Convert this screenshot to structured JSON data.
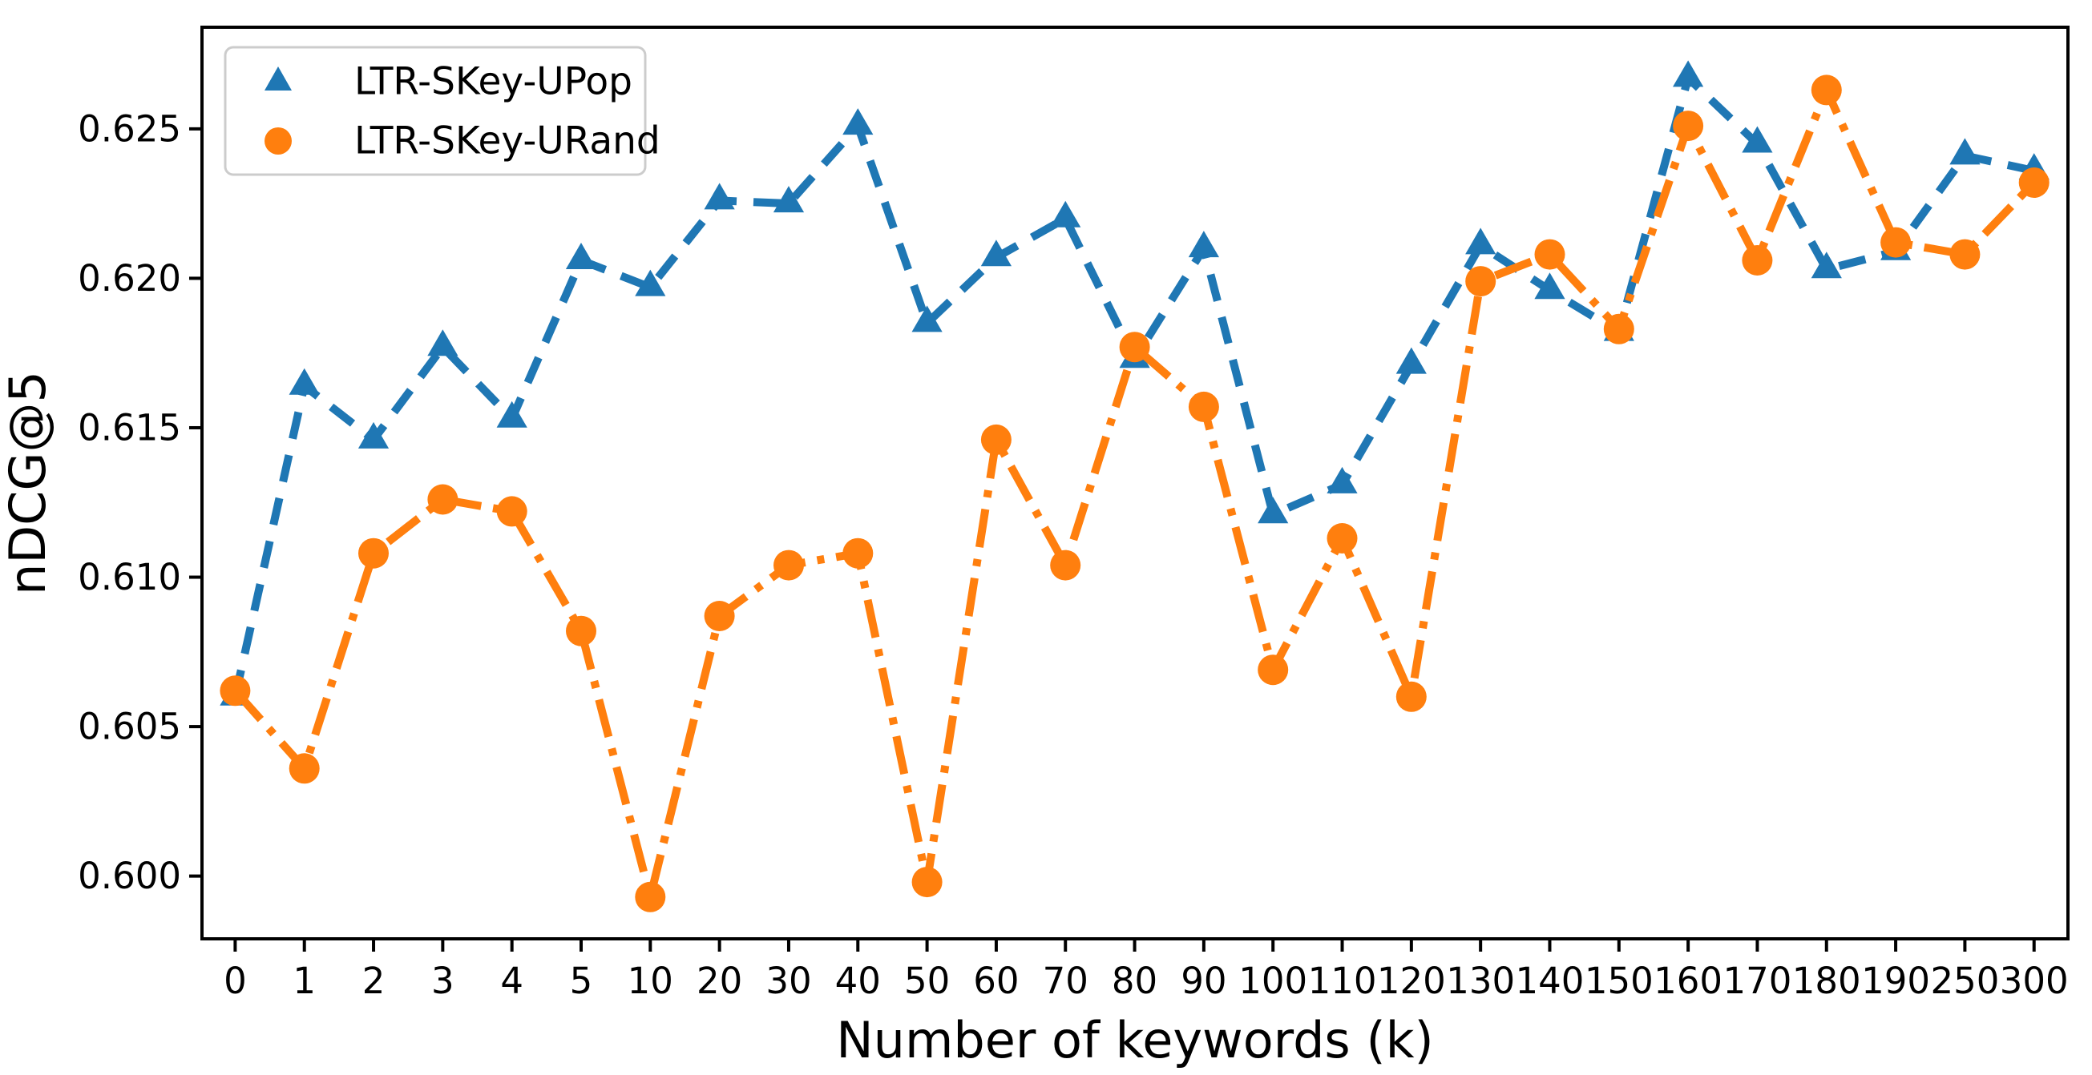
{
  "figure": {
    "background": "#ffffff"
  },
  "chart_data": {
    "type": "line",
    "title": "",
    "xlabel": "Number of keywords (k)",
    "ylabel": "nDCG@5",
    "categories": [
      "0",
      "1",
      "2",
      "3",
      "4",
      "5",
      "10",
      "20",
      "30",
      "40",
      "50",
      "60",
      "70",
      "80",
      "90",
      "100",
      "110",
      "120",
      "130",
      "140",
      "150",
      "160",
      "170",
      "180",
      "190",
      "250",
      "300"
    ],
    "yticks": [
      "0.600",
      "0.605",
      "0.610",
      "0.615",
      "0.620",
      "0.625"
    ],
    "ytick_values": [
      0.6,
      0.605,
      0.61,
      0.615,
      0.62,
      0.625
    ],
    "ylim": [
      0.5979,
      0.6284
    ],
    "grid": false,
    "legend_position": "upper left",
    "series": [
      {
        "name": "LTR-SKey-UPop",
        "color": "#1f77b4",
        "marker": "triangle",
        "linestyle": "dashed",
        "values": [
          0.606,
          0.6164,
          0.6146,
          0.6177,
          0.6153,
          0.6206,
          0.6197,
          0.6226,
          0.6225,
          0.6251,
          0.6185,
          0.6207,
          0.622,
          0.6173,
          0.621,
          0.6121,
          0.6131,
          0.6171,
          0.6211,
          0.6196,
          0.6182,
          0.6267,
          0.6245,
          0.6203,
          0.6209,
          0.6241,
          0.6236
        ]
      },
      {
        "name": "LTR-SKey-URand",
        "color": "#ff7f0e",
        "marker": "circle",
        "linestyle": "dashdot",
        "values": [
          0.6062,
          0.6036,
          0.6108,
          0.6126,
          0.6122,
          0.6082,
          0.5993,
          0.6087,
          0.6104,
          0.6108,
          0.5998,
          0.6146,
          0.6104,
          0.6177,
          0.6157,
          0.6069,
          0.6113,
          0.606,
          0.6199,
          0.6208,
          0.6183,
          0.6251,
          0.6206,
          0.6263,
          0.6212,
          0.6208,
          0.6232
        ]
      }
    ]
  }
}
